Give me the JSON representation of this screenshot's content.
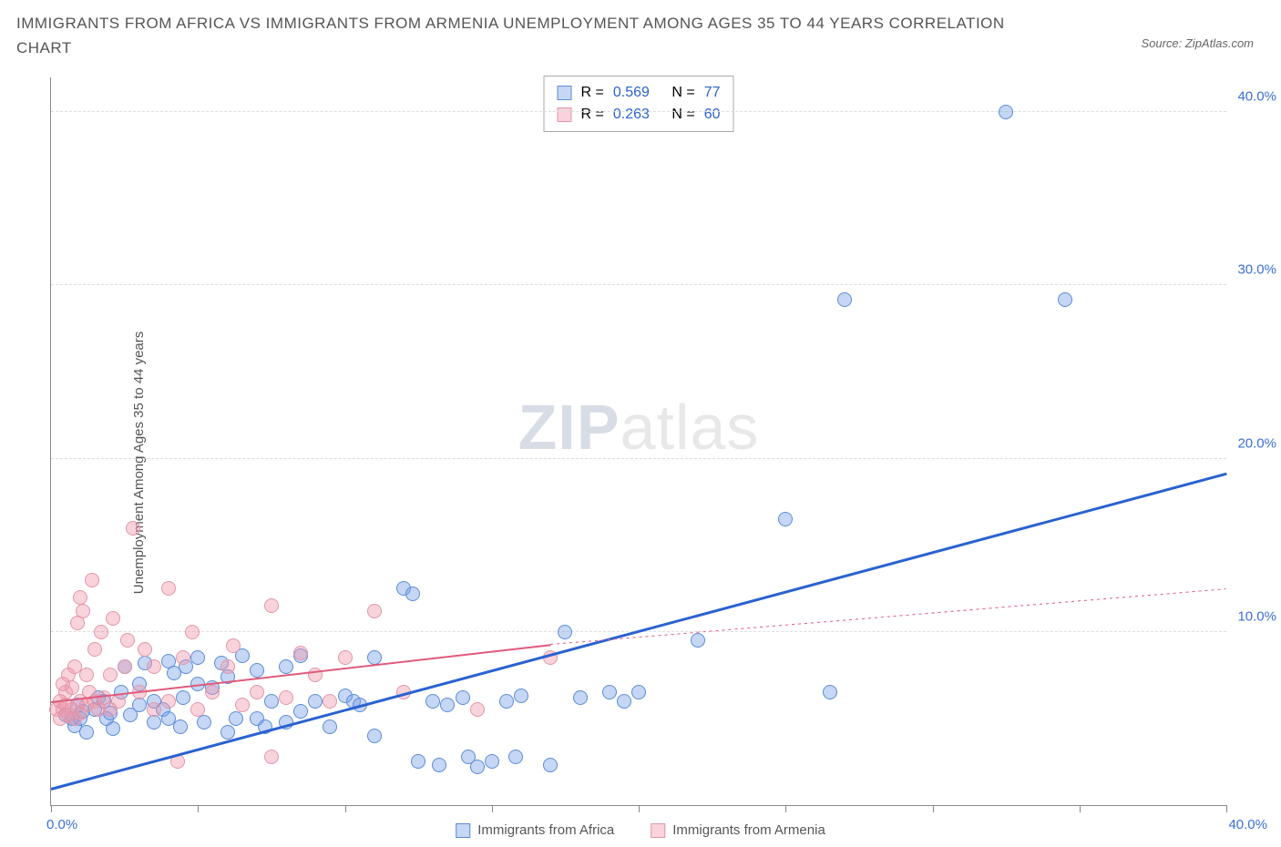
{
  "title": "IMMIGRANTS FROM AFRICA VS IMMIGRANTS FROM ARMENIA UNEMPLOYMENT AMONG AGES 35 TO 44 YEARS CORRELATION CHART",
  "source": "Source: ZipAtlas.com",
  "watermark_zip": "ZIP",
  "watermark_atlas": "atlas",
  "chart": {
    "type": "scatter",
    "ylabel": "Unemployment Among Ages 35 to 44 years",
    "xlim": [
      0,
      40
    ],
    "ylim": [
      0,
      42
    ],
    "xtick_positions": [
      0,
      5,
      10,
      15,
      20,
      25,
      30,
      35,
      40
    ],
    "ytick_positions": [
      10,
      20,
      30,
      40
    ],
    "ytick_labels": [
      "10.0%",
      "20.0%",
      "30.0%",
      "40.0%"
    ],
    "xend_label": "40.0%",
    "xstart_label": "0.0%",
    "background_color": "#ffffff",
    "grid_color": "#dddddd",
    "tick_label_color": "#3b6fd6",
    "axis_color": "#888888",
    "marker_radius": 8,
    "series": [
      {
        "name": "Immigrants from Africa",
        "fill_color": "rgba(120,160,230,0.42)",
        "stroke_color": "#5a8bd8",
        "trend_color": "#2a62d0",
        "trend_width": 3,
        "trend_dash": "solid",
        "r_value": "0.569",
        "n_value": "77",
        "trend": {
          "x1": 0,
          "y1": 1.0,
          "x2": 40,
          "y2": 19.2
        },
        "points": [
          [
            0.5,
            5.2
          ],
          [
            0.7,
            5.0
          ],
          [
            0.8,
            4.6
          ],
          [
            0.9,
            5.8
          ],
          [
            1.0,
            5.0
          ],
          [
            1.1,
            5.4
          ],
          [
            1.2,
            4.2
          ],
          [
            1.5,
            5.5
          ],
          [
            1.6,
            6.2
          ],
          [
            1.8,
            6.0
          ],
          [
            1.9,
            5.0
          ],
          [
            2.0,
            5.3
          ],
          [
            2.1,
            4.4
          ],
          [
            2.4,
            6.5
          ],
          [
            2.5,
            8.0
          ],
          [
            2.7,
            5.2
          ],
          [
            3.0,
            7.0
          ],
          [
            3.0,
            5.8
          ],
          [
            3.2,
            8.2
          ],
          [
            3.5,
            4.8
          ],
          [
            3.5,
            6.0
          ],
          [
            3.8,
            5.5
          ],
          [
            4.0,
            8.3
          ],
          [
            4.0,
            5.0
          ],
          [
            4.2,
            7.6
          ],
          [
            4.4,
            4.5
          ],
          [
            4.5,
            6.2
          ],
          [
            4.6,
            8.0
          ],
          [
            5.0,
            8.5
          ],
          [
            5.0,
            7.0
          ],
          [
            5.2,
            4.8
          ],
          [
            5.5,
            6.8
          ],
          [
            5.8,
            8.2
          ],
          [
            6.0,
            4.2
          ],
          [
            6.0,
            7.4
          ],
          [
            6.3,
            5.0
          ],
          [
            6.5,
            8.6
          ],
          [
            7.0,
            5.0
          ],
          [
            7.0,
            7.8
          ],
          [
            7.3,
            4.5
          ],
          [
            7.5,
            6.0
          ],
          [
            8.0,
            4.8
          ],
          [
            8.0,
            8.0
          ],
          [
            8.5,
            8.6
          ],
          [
            8.5,
            5.4
          ],
          [
            9.0,
            6.0
          ],
          [
            9.5,
            4.5
          ],
          [
            10.0,
            6.3
          ],
          [
            10.3,
            6.0
          ],
          [
            10.5,
            5.8
          ],
          [
            11.0,
            8.5
          ],
          [
            11.0,
            4.0
          ],
          [
            12.0,
            12.5
          ],
          [
            12.3,
            12.2
          ],
          [
            12.5,
            2.5
          ],
          [
            13.0,
            6.0
          ],
          [
            13.2,
            2.3
          ],
          [
            13.5,
            5.8
          ],
          [
            14.0,
            6.2
          ],
          [
            14.2,
            2.8
          ],
          [
            14.5,
            2.2
          ],
          [
            15.0,
            2.5
          ],
          [
            15.5,
            6.0
          ],
          [
            15.8,
            2.8
          ],
          [
            16.0,
            6.3
          ],
          [
            17.0,
            2.3
          ],
          [
            17.5,
            10.0
          ],
          [
            18.0,
            6.2
          ],
          [
            19.0,
            6.5
          ],
          [
            19.5,
            6.0
          ],
          [
            20.0,
            6.5
          ],
          [
            22.0,
            9.5
          ],
          [
            25.0,
            16.5
          ],
          [
            26.5,
            6.5
          ],
          [
            27.0,
            29.2
          ],
          [
            32.5,
            40.0
          ],
          [
            34.5,
            29.2
          ]
        ]
      },
      {
        "name": "Immigrants from Armenia",
        "fill_color": "rgba(240,150,170,0.42)",
        "stroke_color": "#e296a8",
        "trend_color": "#e05a7a",
        "trend_width": 2,
        "trend_dash": "solid",
        "trend_dash_ext": "3,4",
        "r_value": "0.263",
        "n_value": "60",
        "trend": {
          "x1": 0,
          "y1": 6.0,
          "x2": 17,
          "y2": 9.3
        },
        "trend_ext": {
          "x1": 17,
          "y1": 9.3,
          "x2": 40,
          "y2": 12.5
        },
        "points": [
          [
            0.2,
            5.5
          ],
          [
            0.3,
            6.0
          ],
          [
            0.3,
            5.0
          ],
          [
            0.4,
            5.5
          ],
          [
            0.4,
            7.0
          ],
          [
            0.5,
            5.8
          ],
          [
            0.5,
            6.5
          ],
          [
            0.6,
            7.5
          ],
          [
            0.6,
            5.2
          ],
          [
            0.7,
            6.8
          ],
          [
            0.7,
            5.5
          ],
          [
            0.8,
            8.0
          ],
          [
            0.8,
            5.0
          ],
          [
            0.9,
            10.5
          ],
          [
            1.0,
            6.0
          ],
          [
            1.0,
            5.3
          ],
          [
            1.0,
            12.0
          ],
          [
            1.1,
            11.2
          ],
          [
            1.2,
            5.8
          ],
          [
            1.2,
            7.5
          ],
          [
            1.3,
            6.5
          ],
          [
            1.4,
            13.0
          ],
          [
            1.5,
            6.0
          ],
          [
            1.5,
            9.0
          ],
          [
            1.6,
            5.5
          ],
          [
            1.7,
            10.0
          ],
          [
            1.8,
            6.2
          ],
          [
            2.0,
            7.5
          ],
          [
            2.0,
            5.5
          ],
          [
            2.1,
            10.8
          ],
          [
            2.3,
            6.0
          ],
          [
            2.5,
            8.0
          ],
          [
            2.6,
            9.5
          ],
          [
            2.8,
            16.0
          ],
          [
            3.0,
            6.5
          ],
          [
            3.2,
            9.0
          ],
          [
            3.5,
            5.5
          ],
          [
            3.5,
            8.0
          ],
          [
            4.0,
            12.5
          ],
          [
            4.0,
            6.0
          ],
          [
            4.3,
            2.5
          ],
          [
            4.5,
            8.5
          ],
          [
            4.8,
            10.0
          ],
          [
            5.0,
            5.5
          ],
          [
            5.5,
            6.5
          ],
          [
            6.0,
            8.0
          ],
          [
            6.2,
            9.2
          ],
          [
            6.5,
            5.8
          ],
          [
            7.0,
            6.5
          ],
          [
            7.5,
            11.5
          ],
          [
            7.5,
            2.8
          ],
          [
            8.0,
            6.2
          ],
          [
            8.5,
            8.8
          ],
          [
            9.0,
            7.5
          ],
          [
            9.5,
            6.0
          ],
          [
            10.0,
            8.5
          ],
          [
            11.0,
            11.2
          ],
          [
            12.0,
            6.5
          ],
          [
            14.5,
            5.5
          ],
          [
            17.0,
            8.5
          ]
        ]
      }
    ]
  },
  "stats_box": {
    "r_label": "R =",
    "n_label": "N ="
  },
  "bottom_legend": {
    "items": [
      "Immigrants from Africa",
      "Immigrants from Armenia"
    ]
  }
}
